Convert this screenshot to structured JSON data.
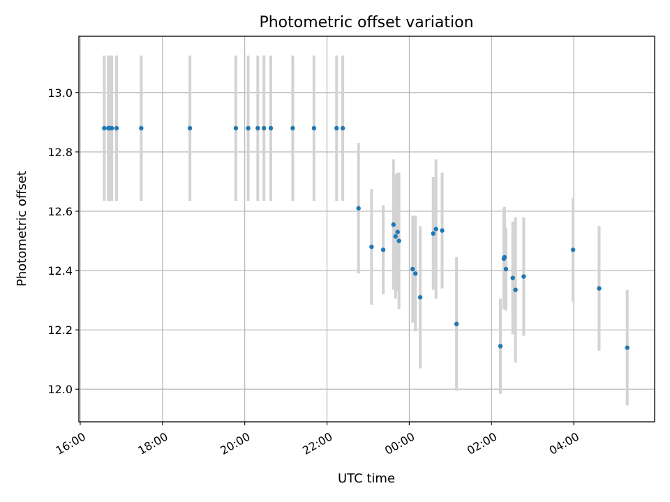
{
  "chart_data": {
    "type": "scatter",
    "title": "Photometric offset variation",
    "xlabel": "UTC time",
    "ylabel": "Photometric offset",
    "x_axis_type": "time",
    "xlim": [
      "15:58",
      "05:58"
    ],
    "ylim": [
      11.89,
      13.19
    ],
    "grid": true,
    "x_ticks": [
      "16:00",
      "18:00",
      "20:00",
      "22:00",
      "00:00",
      "02:00",
      "04:00"
    ],
    "y_ticks": [
      "12.0",
      "12.2",
      "12.4",
      "12.6",
      "12.8",
      "13.0"
    ],
    "colors": {
      "point": "#1f77b4",
      "errorbar": "#d3d3d3",
      "grid": "#b0b0b0"
    },
    "points": [
      {
        "t": "16:35",
        "y": 12.88,
        "err": 0.245
      },
      {
        "t": "16:41",
        "y": 12.88,
        "err": 0.245
      },
      {
        "t": "16:43",
        "y": 12.88,
        "err": 0.245
      },
      {
        "t": "16:46",
        "y": 12.88,
        "err": 0.245
      },
      {
        "t": "16:53",
        "y": 12.88,
        "err": 0.245
      },
      {
        "t": "17:29",
        "y": 12.88,
        "err": 0.245
      },
      {
        "t": "18:40",
        "y": 12.88,
        "err": 0.245
      },
      {
        "t": "19:47",
        "y": 12.88,
        "err": 0.245
      },
      {
        "t": "20:05",
        "y": 12.88,
        "err": 0.245
      },
      {
        "t": "20:19",
        "y": 12.88,
        "err": 0.245
      },
      {
        "t": "20:28",
        "y": 12.88,
        "err": 0.245
      },
      {
        "t": "20:38",
        "y": 12.88,
        "err": 0.245
      },
      {
        "t": "21:10",
        "y": 12.88,
        "err": 0.245
      },
      {
        "t": "21:41",
        "y": 12.88,
        "err": 0.245
      },
      {
        "t": "22:14",
        "y": 12.88,
        "err": 0.245
      },
      {
        "t": "22:23",
        "y": 12.88,
        "err": 0.245
      },
      {
        "t": "22:46",
        "y": 12.61,
        "err": 0.22
      },
      {
        "t": "23:05",
        "y": 12.48,
        "err": 0.195
      },
      {
        "t": "23:22",
        "y": 12.47,
        "err": 0.15
      },
      {
        "t": "23:37",
        "y": 12.555,
        "err": 0.22
      },
      {
        "t": "23:40",
        "y": 12.515,
        "err": 0.21
      },
      {
        "t": "23:43",
        "y": 12.53,
        "err": 0.2
      },
      {
        "t": "23:45",
        "y": 12.5,
        "err": 0.23
      },
      {
        "t": "00:05",
        "y": 12.405,
        "err": 0.18
      },
      {
        "t": "00:09",
        "y": 12.39,
        "err": 0.195
      },
      {
        "t": "00:16",
        "y": 12.31,
        "err": 0.24
      },
      {
        "t": "00:35",
        "y": 12.525,
        "err": 0.19
      },
      {
        "t": "00:39",
        "y": 12.54,
        "err": 0.235
      },
      {
        "t": "00:48",
        "y": 12.535,
        "err": 0.195
      },
      {
        "t": "01:09",
        "y": 12.22,
        "err": 0.225
      },
      {
        "t": "02:13",
        "y": 12.145,
        "err": 0.16
      },
      {
        "t": "02:18",
        "y": 12.44,
        "err": 0.17
      },
      {
        "t": "02:19",
        "y": 12.445,
        "err": 0.17
      },
      {
        "t": "02:21",
        "y": 12.405,
        "err": 0.14
      },
      {
        "t": "02:31",
        "y": 12.375,
        "err": 0.19
      },
      {
        "t": "02:35",
        "y": 12.335,
        "err": 0.245
      },
      {
        "t": "02:47",
        "y": 12.38,
        "err": 0.2
      },
      {
        "t": "03:59",
        "y": 12.47,
        "err": 0.175
      },
      {
        "t": "04:37",
        "y": 12.34,
        "err": 0.21
      },
      {
        "t": "05:18",
        "y": 12.14,
        "err": 0.195
      }
    ]
  }
}
